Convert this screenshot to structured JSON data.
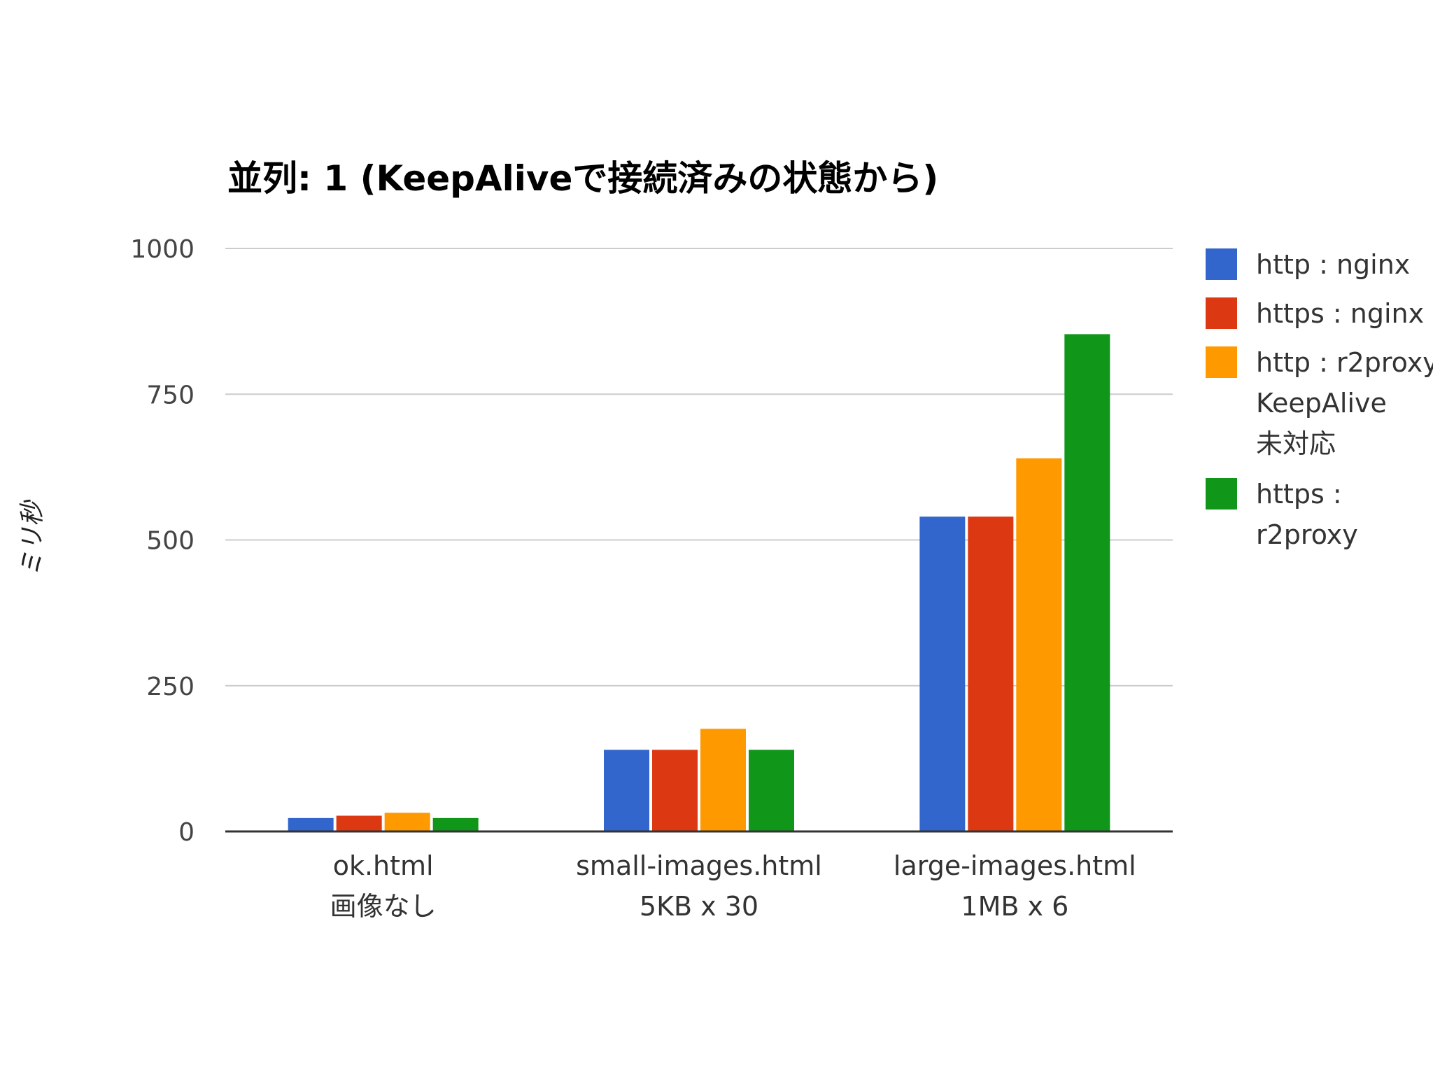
{
  "chart_data": {
    "type": "bar",
    "title": "並列: 1 (KeepAliveで接続済みの状態から)",
    "xlabel": "",
    "ylabel": "ミリ秒",
    "ylim": [
      0,
      1000
    ],
    "yticks": [
      "0",
      "250",
      "500",
      "750",
      "1000"
    ],
    "grid": true,
    "legend_position": "right",
    "categories": [
      [
        "ok.html",
        "画像なし"
      ],
      [
        "small-images.html",
        "5KB x 30"
      ],
      [
        "large-images.html",
        "1MB x 6"
      ]
    ],
    "series": [
      {
        "name": "http : nginx",
        "legend_lines": [
          "http : nginx"
        ],
        "color": "#3366cc",
        "values": [
          23,
          140,
          540
        ]
      },
      {
        "name": "https : nginx",
        "legend_lines": [
          "https : nginx"
        ],
        "color": "#dc3912",
        "values": [
          27,
          140,
          540
        ]
      },
      {
        "name": "http : r2proxy KeepAlive 未対応",
        "legend_lines": [
          "http : r2proxy",
          "KeepAlive",
          "未対応"
        ],
        "color": "#ff9900",
        "values": [
          32,
          176,
          640
        ]
      },
      {
        "name": "https : r2proxy",
        "legend_lines": [
          "https :",
          "r2proxy"
        ],
        "color": "#109618",
        "values": [
          23,
          140,
          853
        ]
      }
    ]
  }
}
